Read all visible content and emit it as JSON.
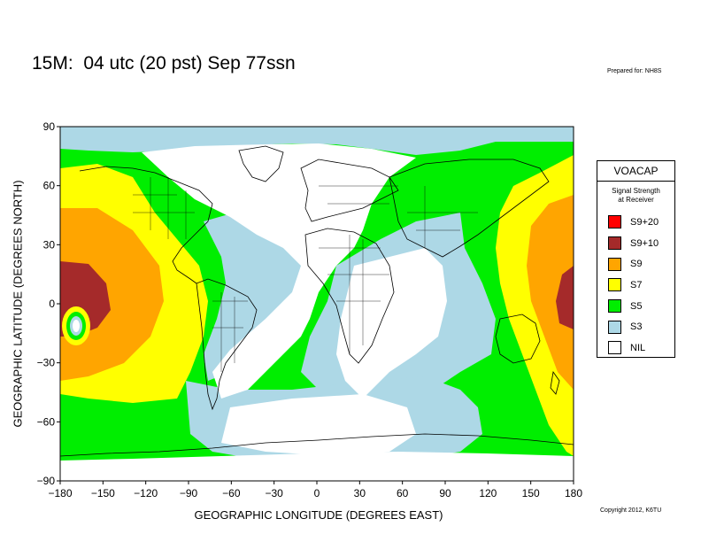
{
  "header": {
    "title": "15M:  04 utc (20 pst) Sep 77ssn",
    "prepared": "Prepared for: NH8S",
    "copyright": "Copyright 2012, K6TU"
  },
  "axes": {
    "ylabel": "GEOGRAPHIC LATITUDE (DEGREES NORTH)",
    "xlabel": "GEOGRAPHIC LONGITUDE (DEGREES EAST)",
    "lon_ticks": [
      "−180",
      "−150",
      "−120",
      "−90",
      "−60",
      "−30",
      "0",
      "30",
      "60",
      "90",
      "120",
      "150",
      "180"
    ],
    "lat_ticks": [
      "90",
      "60",
      "30",
      "0",
      "−30",
      "−60",
      "−90"
    ]
  },
  "legend": {
    "title": "VOACAP",
    "subtitle_line1": "Signal Strength",
    "subtitle_line2": "at Receiver",
    "items": [
      {
        "label": "S9+20",
        "color": "#ff0000"
      },
      {
        "label": "S9+10",
        "color": "#a52a2a"
      },
      {
        "label": "S9",
        "color": "#ffa500"
      },
      {
        "label": "S7",
        "color": "#ffff00"
      },
      {
        "label": "S5",
        "color": "#00ee00"
      },
      {
        "label": "S3",
        "color": "#add8e6"
      },
      {
        "label": "NIL",
        "color": "#ffffff"
      }
    ]
  }
}
